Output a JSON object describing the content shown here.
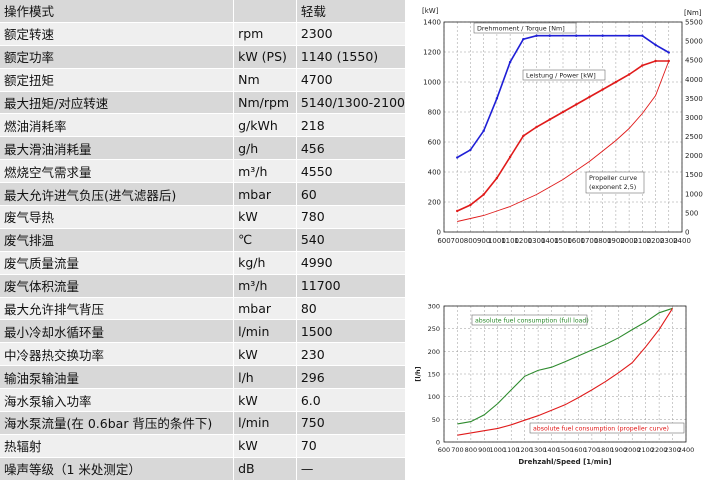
{
  "table": {
    "rows": [
      {
        "item": "操作模式",
        "unit": "",
        "value": "轻载"
      },
      {
        "item": "额定转速",
        "unit": "rpm",
        "value": "2300"
      },
      {
        "item": "额定功率",
        "unit": "kW (PS)",
        "value": "1140 (1550)"
      },
      {
        "item": "额定扭矩",
        "unit": "Nm",
        "value": "4700"
      },
      {
        "item": "最大扭矩/对应转速",
        "unit": "Nm/rpm",
        "value": "5140/1300-2100"
      },
      {
        "item": "燃油消耗率",
        "unit": "g/kWh",
        "value": "218"
      },
      {
        "item": "最大滑油消耗量",
        "unit": "g/h",
        "value": "456"
      },
      {
        "item": "燃烧空气需求量",
        "unit": "m³/h",
        "value": "4550"
      },
      {
        "item": "最大允许进气负压(进气滤器后)",
        "unit": "mbar",
        "value": "60"
      },
      {
        "item": "废气导热",
        "unit": "kW",
        "value": "780"
      },
      {
        "item": "废气排温",
        "unit": "℃",
        "value": "540"
      },
      {
        "item": "废气质量流量",
        "unit": "kg/h",
        "value": "4990"
      },
      {
        "item": "废气体积流量",
        "unit": "m³/h",
        "value": "11700"
      },
      {
        "item": "最大允许排气背压",
        "unit": "mbar",
        "value": "80"
      },
      {
        "item": "最小冷却水循环量",
        "unit": "l/min",
        "value": "1500"
      },
      {
        "item": "中冷器热交换功率",
        "unit": "kW",
        "value": "230"
      },
      {
        "item": "输油泵输油量",
        "unit": "l/h",
        "value": "296"
      },
      {
        "item": "海水泵输入功率",
        "unit": "kW",
        "value": "6.0"
      },
      {
        "item": "海水泵流量(在 0.6bar 背压的条件下)",
        "unit": "l/min",
        "value": "750"
      },
      {
        "item": "热辐射",
        "unit": "kW",
        "value": "70"
      },
      {
        "item": "噪声等级（1 米处测定）",
        "unit": "dB",
        "value": "—"
      }
    ]
  },
  "chart_data": [
    {
      "type": "line",
      "left_unit": "[kW]",
      "right_unit": "[Nm]",
      "xlim": [
        600,
        2400
      ],
      "xticks": [
        "600",
        "700",
        "800",
        "900",
        "1000",
        "1100",
        "1200",
        "1300",
        "1400",
        "1500",
        "1600",
        "1700",
        "1800",
        "1900",
        "2000",
        "2100",
        "2200",
        "2300",
        "2400"
      ],
      "ylim_left": [
        0,
        1400
      ],
      "yticks_left": [
        "0",
        "200",
        "400",
        "600",
        "800",
        "1000",
        "1200",
        "1400"
      ],
      "ylim_right": [
        0,
        5500
      ],
      "yticks_right": [
        "0",
        "500",
        "1000",
        "1500",
        "2000",
        "2500",
        "3000",
        "3500",
        "4000",
        "4500",
        "5000",
        "5500"
      ],
      "annotations": {
        "torque": "Drehmoment / Torque [Nm]",
        "power": "Leistung / Power [kW]",
        "propeller_line1": "Propeller curve",
        "propeller_line2": "(exponent 2,5)"
      },
      "colors": {
        "torque": "#1f1fd6",
        "power": "#e01b1b",
        "propeller": "#e01b1b",
        "grid": "#9a9a9a",
        "axis": "#222222"
      },
      "series": [
        {
          "key": "torque",
          "axis": "right",
          "x": [
            700,
            800,
            900,
            1000,
            1100,
            1200,
            1300,
            1400,
            1600,
            1800,
            2000,
            2100,
            2200,
            2300
          ],
          "y": [
            1950,
            2150,
            2650,
            3500,
            4450,
            5050,
            5140,
            5140,
            5140,
            5140,
            5140,
            5140,
            4900,
            4700
          ]
        },
        {
          "key": "power",
          "axis": "left",
          "x": [
            700,
            800,
            900,
            1000,
            1100,
            1200,
            1300,
            1400,
            1500,
            1600,
            1700,
            1800,
            1900,
            2000,
            2100,
            2200,
            2300
          ],
          "y": [
            140,
            180,
            250,
            360,
            500,
            640,
            700,
            750,
            800,
            850,
            900,
            950,
            1000,
            1050,
            1110,
            1140,
            1140
          ]
        },
        {
          "key": "propeller",
          "axis": "left",
          "x": [
            700,
            800,
            900,
            1000,
            1100,
            1200,
            1300,
            1400,
            1500,
            1600,
            1700,
            1800,
            1900,
            2000,
            2100,
            2200,
            2300
          ],
          "y": [
            70,
            90,
            110,
            140,
            170,
            210,
            250,
            300,
            350,
            410,
            470,
            540,
            610,
            690,
            790,
            910,
            1140
          ]
        }
      ]
    },
    {
      "type": "line",
      "ylabel": "[l/h]",
      "xlabel": "Drehzahl/Speed [1/min]",
      "xlim": [
        600,
        2400
      ],
      "xticks": [
        "600",
        "700",
        "800",
        "900",
        "1000",
        "1100",
        "1200",
        "1300",
        "1400",
        "1500",
        "1600",
        "1700",
        "1800",
        "1900",
        "2000",
        "2100",
        "2200",
        "2300",
        "2400"
      ],
      "ylim": [
        0,
        300
      ],
      "yticks": [
        "0",
        "50",
        "100",
        "150",
        "200",
        "250",
        "300"
      ],
      "annotations": {
        "full": "absolute fuel consumption (full load)",
        "propeller": "absolute fuel consumption (propeller curve)"
      },
      "colors": {
        "full": "#2e8b2e",
        "propeller": "#e01b1b",
        "grid": "#9a9a9a",
        "axis": "#222222"
      },
      "series": [
        {
          "key": "full",
          "x": [
            700,
            800,
            900,
            1000,
            1100,
            1200,
            1300,
            1400,
            1500,
            1600,
            1700,
            1800,
            1900,
            2000,
            2100,
            2200,
            2300
          ],
          "y": [
            40,
            45,
            60,
            85,
            115,
            145,
            158,
            165,
            177,
            190,
            203,
            215,
            230,
            248,
            265,
            285,
            295
          ]
        },
        {
          "key": "propeller",
          "x": [
            700,
            800,
            900,
            1000,
            1100,
            1200,
            1300,
            1400,
            1500,
            1600,
            1700,
            1800,
            1900,
            2000,
            2100,
            2200,
            2300
          ],
          "y": [
            15,
            20,
            25,
            30,
            38,
            48,
            58,
            70,
            82,
            98,
            115,
            133,
            153,
            175,
            210,
            248,
            295
          ]
        }
      ]
    }
  ]
}
